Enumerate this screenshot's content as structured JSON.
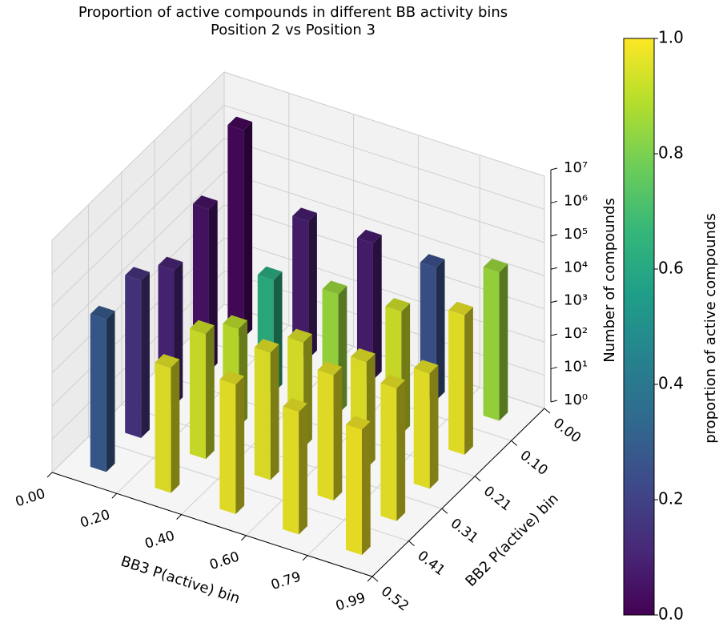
{
  "chart_data": {
    "type": "bar3d",
    "title": "Proportion of active compounds in different BB activity bins",
    "subtitle": "Position 2 vs Position 3",
    "xlabel": "BB3 P(active) bin",
    "ylabel": "BB2 P(active) bin",
    "zlabel": "Number of compounds",
    "xlim": [
      0,
      0.99
    ],
    "ylim": [
      0,
      0.52
    ],
    "xticks": [
      {
        "value": 0,
        "label": "0.00"
      },
      {
        "value": 0.2,
        "label": "0.20"
      },
      {
        "value": 0.4,
        "label": "0.40"
      },
      {
        "value": 0.6,
        "label": "0.60"
      },
      {
        "value": 0.79,
        "label": "0.79"
      },
      {
        "value": 0.99,
        "label": "0.99"
      }
    ],
    "yticks": [
      {
        "value": 0,
        "label": "0.00"
      },
      {
        "value": 0.1,
        "label": "0.10"
      },
      {
        "value": 0.21,
        "label": "0.21"
      },
      {
        "value": 0.31,
        "label": "0.31"
      },
      {
        "value": 0.41,
        "label": "0.41"
      },
      {
        "value": 0.52,
        "label": "0.52"
      }
    ],
    "zscale": "log",
    "zlim": [
      1,
      10000000
    ],
    "zticks": [
      {
        "value": 1,
        "label": "10⁰"
      },
      {
        "value": 10,
        "label": "10¹"
      },
      {
        "value": 100,
        "label": "10²"
      },
      {
        "value": 1000,
        "label": "10³"
      },
      {
        "value": 10000,
        "label": "10⁴"
      },
      {
        "value": 100000,
        "label": "10⁵"
      },
      {
        "value": 1000000,
        "label": "10⁶"
      },
      {
        "value": 10000000,
        "label": "10⁷"
      }
    ],
    "grid": true,
    "values": [
      [
        1800000,
        14000,
        13000,
        10000,
        30000
      ],
      [
        80000,
        2500,
        4000,
        5000,
        16000
      ],
      [
        12000,
        900,
        1500,
        1600,
        3000
      ],
      [
        56000,
        6000,
        7000,
        6000,
        10000
      ],
      [
        40000,
        6000,
        8000,
        5000,
        6000
      ]
    ],
    "proportions": [
      [
        0.02,
        0.08,
        0.08,
        0.25,
        0.85
      ],
      [
        0.05,
        0.62,
        0.85,
        0.93,
        0.97
      ],
      [
        0.1,
        0.9,
        0.95,
        0.96,
        0.97
      ],
      [
        0.15,
        0.93,
        0.96,
        0.97,
        0.97
      ],
      [
        0.28,
        0.96,
        0.97,
        0.97,
        0.98
      ]
    ],
    "colormap": "viridis",
    "clim": [
      0,
      1
    ],
    "cticks": [
      {
        "value": 0,
        "label": "0.0"
      },
      {
        "value": 0.2,
        "label": "0.2"
      },
      {
        "value": 0.4,
        "label": "0.4"
      },
      {
        "value": 0.6,
        "label": "0.6"
      },
      {
        "value": 0.8,
        "label": "0.8"
      },
      {
        "value": 1,
        "label": "1.0"
      }
    ],
    "clabel": "proportion of active compounds"
  }
}
